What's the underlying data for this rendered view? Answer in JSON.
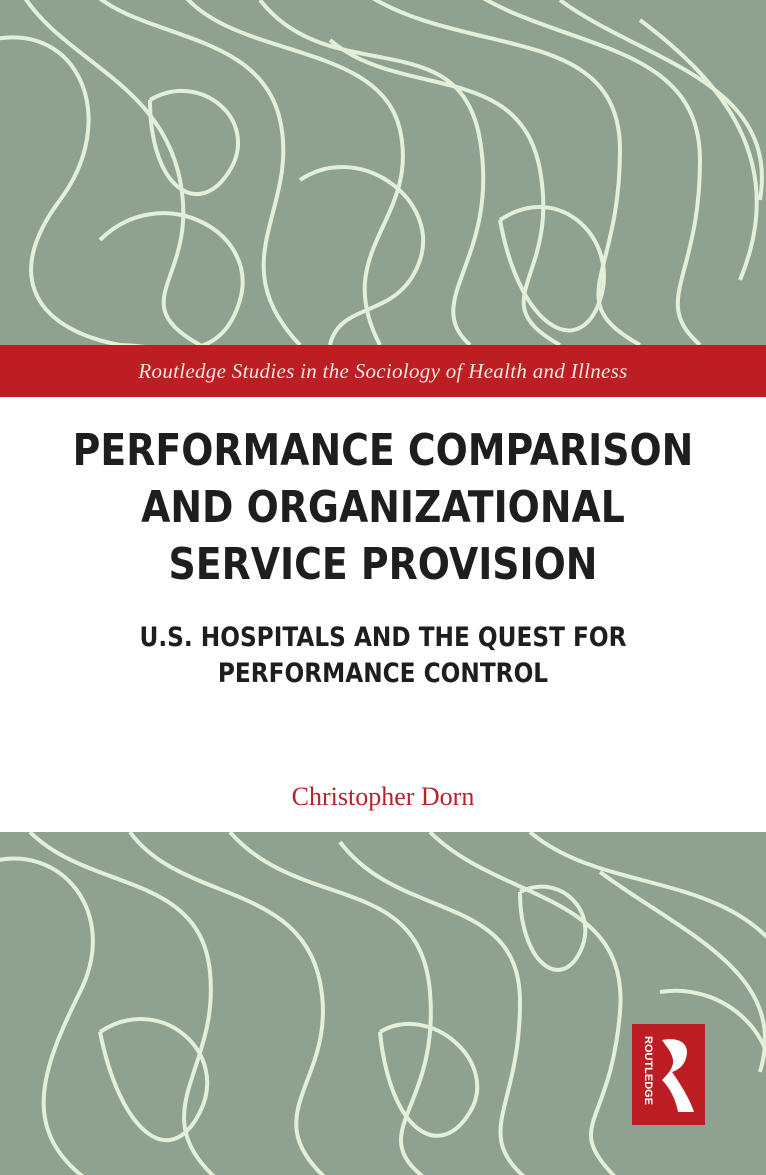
{
  "cover": {
    "series": "Routledge Studies in the Sociology of Health and Illness",
    "title_lines": [
      "PERFORMANCE COMPARISON",
      "AND ORGANIZATIONAL",
      "SERVICE PROVISION"
    ],
    "subtitle_lines": [
      "U.S. HOSPITALS AND THE QUEST FOR",
      "PERFORMANCE CONTROL"
    ],
    "author": "Christopher Dorn",
    "publisher_logo": "ROUTLEDGE"
  },
  "colors": {
    "pattern_bg": "#8fa190",
    "pattern_lines": "#e4efd9",
    "band": "#bd1e24",
    "author": "#b5242a"
  }
}
